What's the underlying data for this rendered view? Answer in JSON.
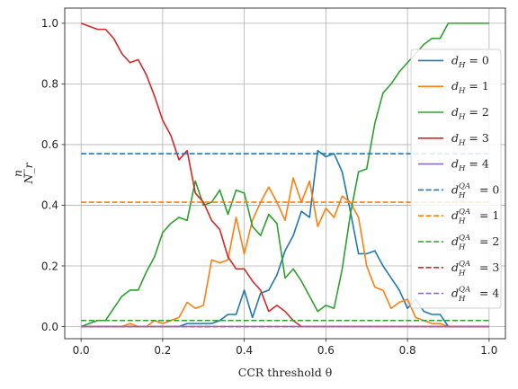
{
  "chart_data": {
    "type": "line",
    "xlabel": "CCR threshold θ",
    "ylabel_numerator": "n",
    "ylabel_denominator": "N_r",
    "xlim": [
      -0.04,
      1.04
    ],
    "ylim": [
      -0.04,
      1.05
    ],
    "xticks": [
      0.0,
      0.2,
      0.4,
      0.6,
      0.8,
      1.0
    ],
    "yticks": [
      0.0,
      0.2,
      0.4,
      0.6,
      0.8,
      1.0
    ],
    "xtick_labels": [
      "0.0",
      "0.2",
      "0.4",
      "0.6",
      "0.8",
      "1.0"
    ],
    "ytick_labels": [
      "0.0",
      "0.2",
      "0.4",
      "0.6",
      "0.8",
      "1.0"
    ],
    "grid": true,
    "legend_position": "right",
    "x": [
      0.0,
      0.02,
      0.04,
      0.06,
      0.08,
      0.1,
      0.12,
      0.14,
      0.16,
      0.18,
      0.2,
      0.22,
      0.24,
      0.26,
      0.28,
      0.3,
      0.32,
      0.34,
      0.36,
      0.38,
      0.4,
      0.42,
      0.44,
      0.46,
      0.48,
      0.5,
      0.52,
      0.54,
      0.56,
      0.58,
      0.6,
      0.62,
      0.64,
      0.66,
      0.68,
      0.7,
      0.72,
      0.74,
      0.76,
      0.78,
      0.8,
      0.82,
      0.84,
      0.86,
      0.88,
      0.9,
      0.92,
      0.94,
      0.96,
      0.98,
      1.0
    ],
    "series": [
      {
        "legend_base": "d",
        "legend_sub": "H",
        "legend_sup": "",
        "legend_value": "= 0",
        "color": "#1f77b4",
        "dash": "solid",
        "values": [
          0.0,
          0.0,
          0.0,
          0.0,
          0.0,
          0.0,
          0.0,
          0.0,
          0.0,
          0.0,
          0.0,
          0.0,
          0.0,
          0.01,
          0.01,
          0.01,
          0.01,
          0.02,
          0.04,
          0.04,
          0.12,
          0.03,
          0.11,
          0.12,
          0.17,
          0.25,
          0.3,
          0.38,
          0.36,
          0.58,
          0.56,
          0.57,
          0.51,
          0.38,
          0.24,
          0.24,
          0.25,
          0.2,
          0.16,
          0.12,
          0.06,
          0.09,
          0.05,
          0.04,
          0.04,
          0.0,
          0.0,
          0.0,
          0.0,
          0.0,
          0.0
        ]
      },
      {
        "legend_base": "d",
        "legend_sub": "H",
        "legend_sup": "",
        "legend_value": "= 1",
        "color": "#ff7f0e",
        "dash": "solid",
        "values": [
          0.0,
          0.0,
          0.0,
          0.0,
          0.0,
          0.0,
          0.01,
          0.0,
          0.0,
          0.02,
          0.01,
          0.02,
          0.03,
          0.08,
          0.06,
          0.07,
          0.22,
          0.21,
          0.22,
          0.36,
          0.24,
          0.35,
          0.41,
          0.46,
          0.41,
          0.35,
          0.49,
          0.41,
          0.48,
          0.33,
          0.39,
          0.36,
          0.43,
          0.41,
          0.36,
          0.2,
          0.13,
          0.12,
          0.06,
          0.08,
          0.09,
          0.03,
          0.02,
          0.01,
          0.01,
          0.0,
          0.0,
          0.0,
          0.0,
          0.0,
          0.0
        ]
      },
      {
        "legend_base": "d",
        "legend_sub": "H",
        "legend_sup": "",
        "legend_value": "= 2",
        "color": "#2ca02c",
        "dash": "solid",
        "values": [
          0.0,
          0.01,
          0.02,
          0.02,
          0.06,
          0.1,
          0.12,
          0.12,
          0.18,
          0.23,
          0.31,
          0.34,
          0.36,
          0.35,
          0.48,
          0.4,
          0.41,
          0.45,
          0.37,
          0.45,
          0.44,
          0.33,
          0.3,
          0.37,
          0.34,
          0.16,
          0.19,
          0.15,
          0.1,
          0.05,
          0.07,
          0.06,
          0.19,
          0.37,
          0.51,
          0.52,
          0.67,
          0.77,
          0.8,
          0.84,
          0.87,
          0.9,
          0.93,
          0.95,
          0.95,
          1.0,
          1.0,
          1.0,
          1.0,
          1.0,
          1.0
        ]
      },
      {
        "legend_base": "d",
        "legend_sub": "H",
        "legend_sup": "",
        "legend_value": "= 3",
        "color": "#d62728",
        "dash": "solid",
        "values": [
          1.0,
          0.99,
          0.98,
          0.98,
          0.95,
          0.9,
          0.87,
          0.88,
          0.83,
          0.76,
          0.68,
          0.63,
          0.55,
          0.58,
          0.44,
          0.41,
          0.35,
          0.32,
          0.23,
          0.19,
          0.19,
          0.15,
          0.12,
          0.05,
          0.07,
          0.05,
          0.02,
          0.0,
          0.0,
          0.0,
          0.0,
          0.0,
          0.0,
          0.0,
          0.0,
          0.0,
          0.0,
          0.0,
          0.0,
          0.0,
          0.0,
          0.0,
          0.0,
          0.0,
          0.0,
          0.0,
          0.0,
          0.0,
          0.0,
          0.0,
          0.0
        ]
      },
      {
        "legend_base": "d",
        "legend_sub": "H",
        "legend_sup": "",
        "legend_value": "= 4",
        "color": "#9467bd",
        "dash": "solid",
        "values": [
          0.0,
          0.0,
          0.0,
          0.0,
          0.0,
          0.0,
          0.0,
          0.0,
          0.0,
          0.0,
          0.0,
          0.0,
          0.0,
          0.0,
          0.0,
          0.0,
          0.0,
          0.0,
          0.0,
          0.0,
          0.0,
          0.0,
          0.0,
          0.0,
          0.0,
          0.0,
          0.0,
          0.0,
          0.0,
          0.0,
          0.0,
          0.0,
          0.0,
          0.0,
          0.0,
          0.0,
          0.0,
          0.0,
          0.0,
          0.0,
          0.0,
          0.0,
          0.0,
          0.0,
          0.0,
          0.0,
          0.0,
          0.0,
          0.0,
          0.0,
          0.0
        ]
      },
      {
        "legend_base": "d",
        "legend_sub": "H",
        "legend_sup": "QA",
        "legend_value": "= 0",
        "color": "#1f77b4",
        "dash": "dashed",
        "constant": 0.57
      },
      {
        "legend_base": "d",
        "legend_sub": "H",
        "legend_sup": "QA",
        "legend_value": "= 1",
        "color": "#ff7f0e",
        "dash": "dashed",
        "constant": 0.41
      },
      {
        "legend_base": "d",
        "legend_sub": "H",
        "legend_sup": "QA",
        "legend_value": "= 2",
        "color": "#2ca02c",
        "dash": "dashed",
        "constant": 0.02
      },
      {
        "legend_base": "d",
        "legend_sub": "H",
        "legend_sup": "QA",
        "legend_value": "= 3",
        "color": "#d62728",
        "dash": "dashed",
        "constant": 0.0
      },
      {
        "legend_base": "d",
        "legend_sub": "H",
        "legend_sup": "QA",
        "legend_value": "= 4",
        "color": "#9467bd",
        "dash": "dashed",
        "constant": 0.0
      }
    ]
  }
}
